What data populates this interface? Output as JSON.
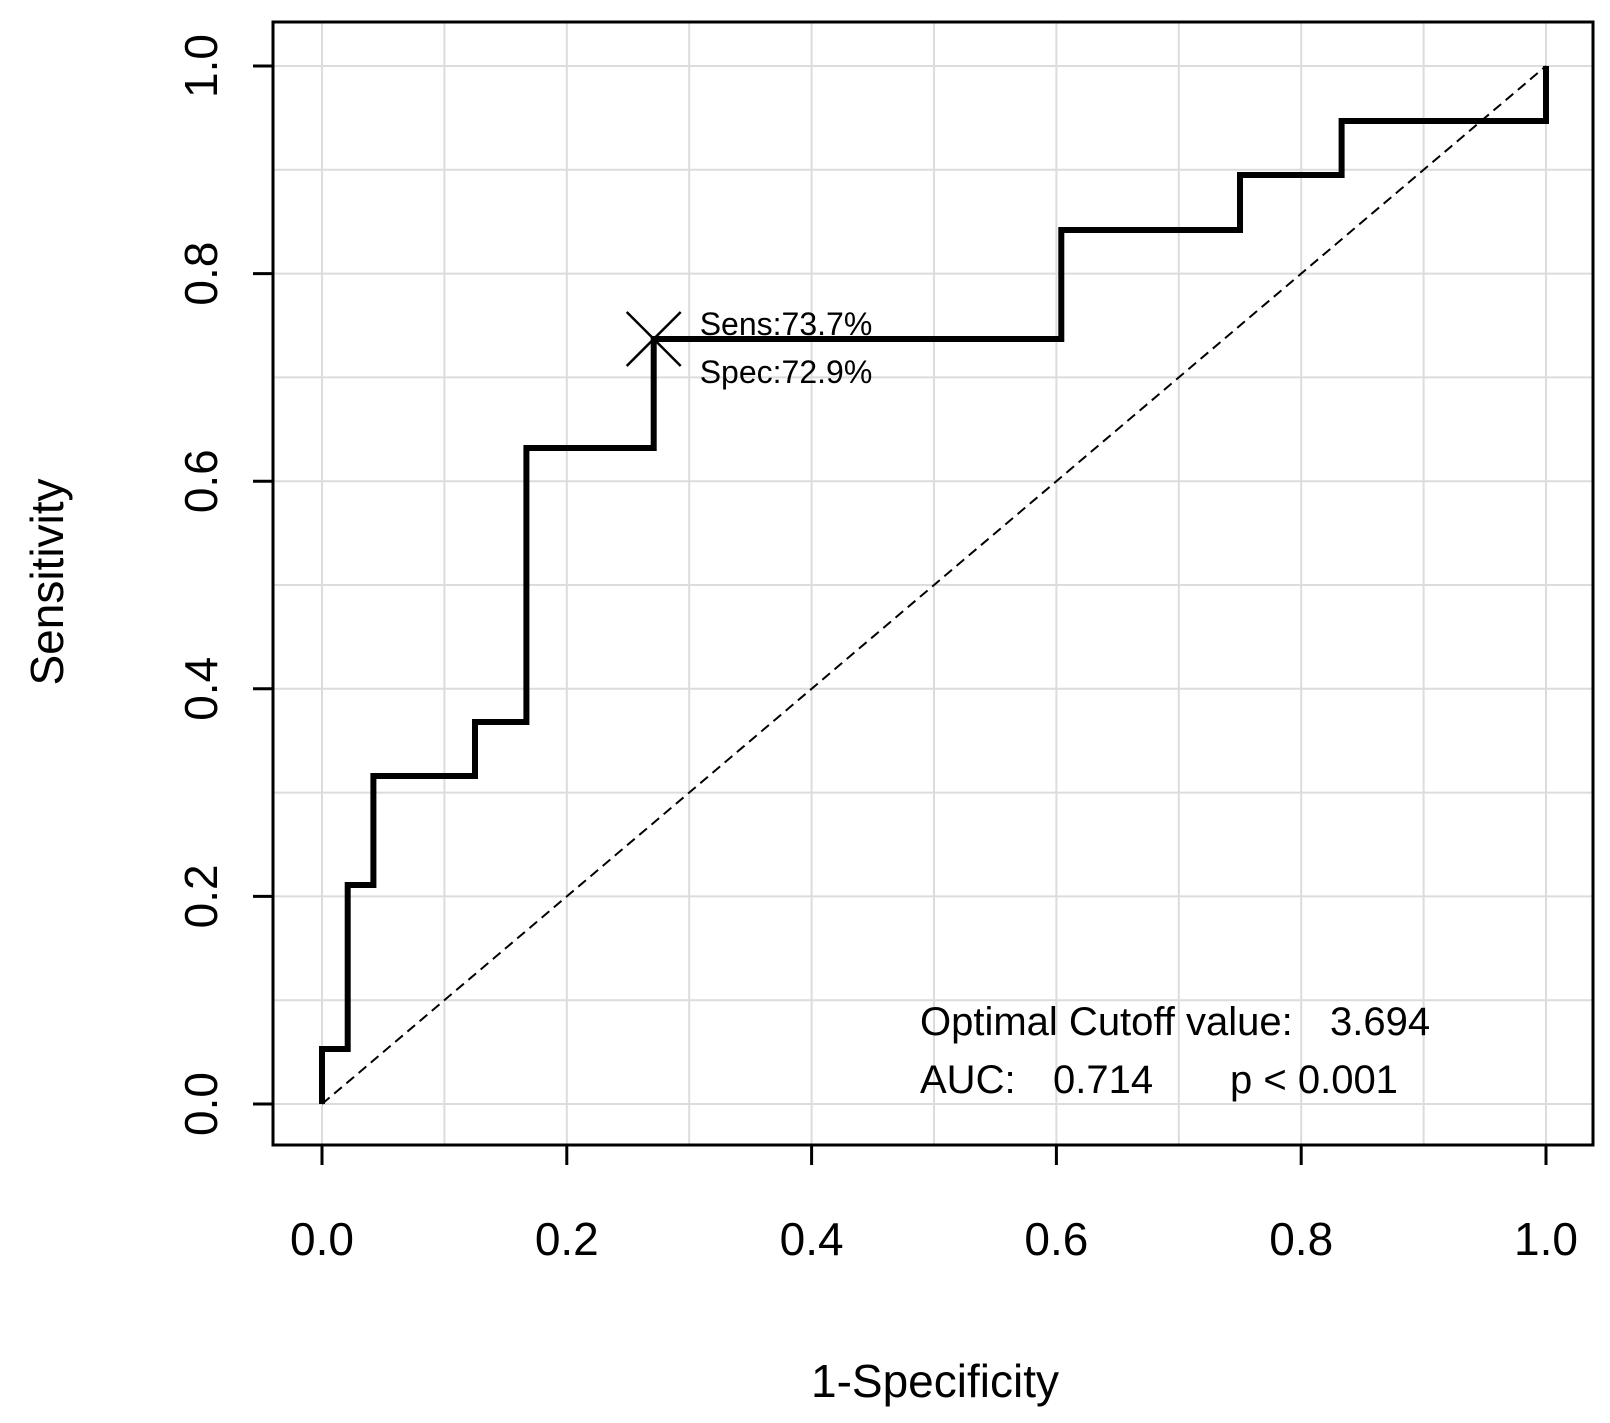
{
  "chart_data": {
    "type": "line",
    "title": "",
    "xlabel": "1-Specificity",
    "ylabel": "Sensitivity",
    "xlim": [
      0.0,
      1.0
    ],
    "ylim": [
      0.0,
      1.0
    ],
    "xticks": [
      0.0,
      0.2,
      0.4,
      0.6,
      0.8,
      1.0
    ],
    "yticks": [
      0.0,
      0.2,
      0.4,
      0.6,
      0.8,
      1.0
    ],
    "xtick_labels": [
      "0.0",
      "0.2",
      "0.4",
      "0.6",
      "0.8",
      "1.0"
    ],
    "ytick_labels": [
      "0.0",
      "0.2",
      "0.4",
      "0.6",
      "0.8",
      "1.0"
    ],
    "grid_minor_step": 0.1,
    "grid": true,
    "series": [
      {
        "name": "ROC curve",
        "style": "step",
        "x": [
          0.0,
          0.0,
          0.021,
          0.021,
          0.042,
          0.042,
          0.125,
          0.125,
          0.167,
          0.167,
          0.271,
          0.271,
          0.604,
          0.604,
          0.75,
          0.75,
          0.833,
          0.833,
          1.0,
          1.0
        ],
        "y": [
          0.0,
          0.053,
          0.053,
          0.211,
          0.211,
          0.316,
          0.316,
          0.368,
          0.368,
          0.632,
          0.632,
          0.737,
          0.737,
          0.842,
          0.842,
          0.895,
          0.895,
          0.947,
          0.947,
          1.0
        ]
      },
      {
        "name": "Reference line",
        "style": "dashed",
        "x": [
          0.0,
          1.0
        ],
        "y": [
          0.0,
          1.0
        ]
      }
    ],
    "optimal_point": {
      "x": 0.271,
      "y": 0.737,
      "sens_label": "Sens:73.7%",
      "spec_label": "Spec:72.9%"
    },
    "annotations": {
      "cutoff_label": "Optimal Cutoff value:",
      "cutoff_value": "3.694",
      "auc_label": "AUC:",
      "auc_value": "0.714",
      "p_text": "p < 0.001"
    }
  }
}
